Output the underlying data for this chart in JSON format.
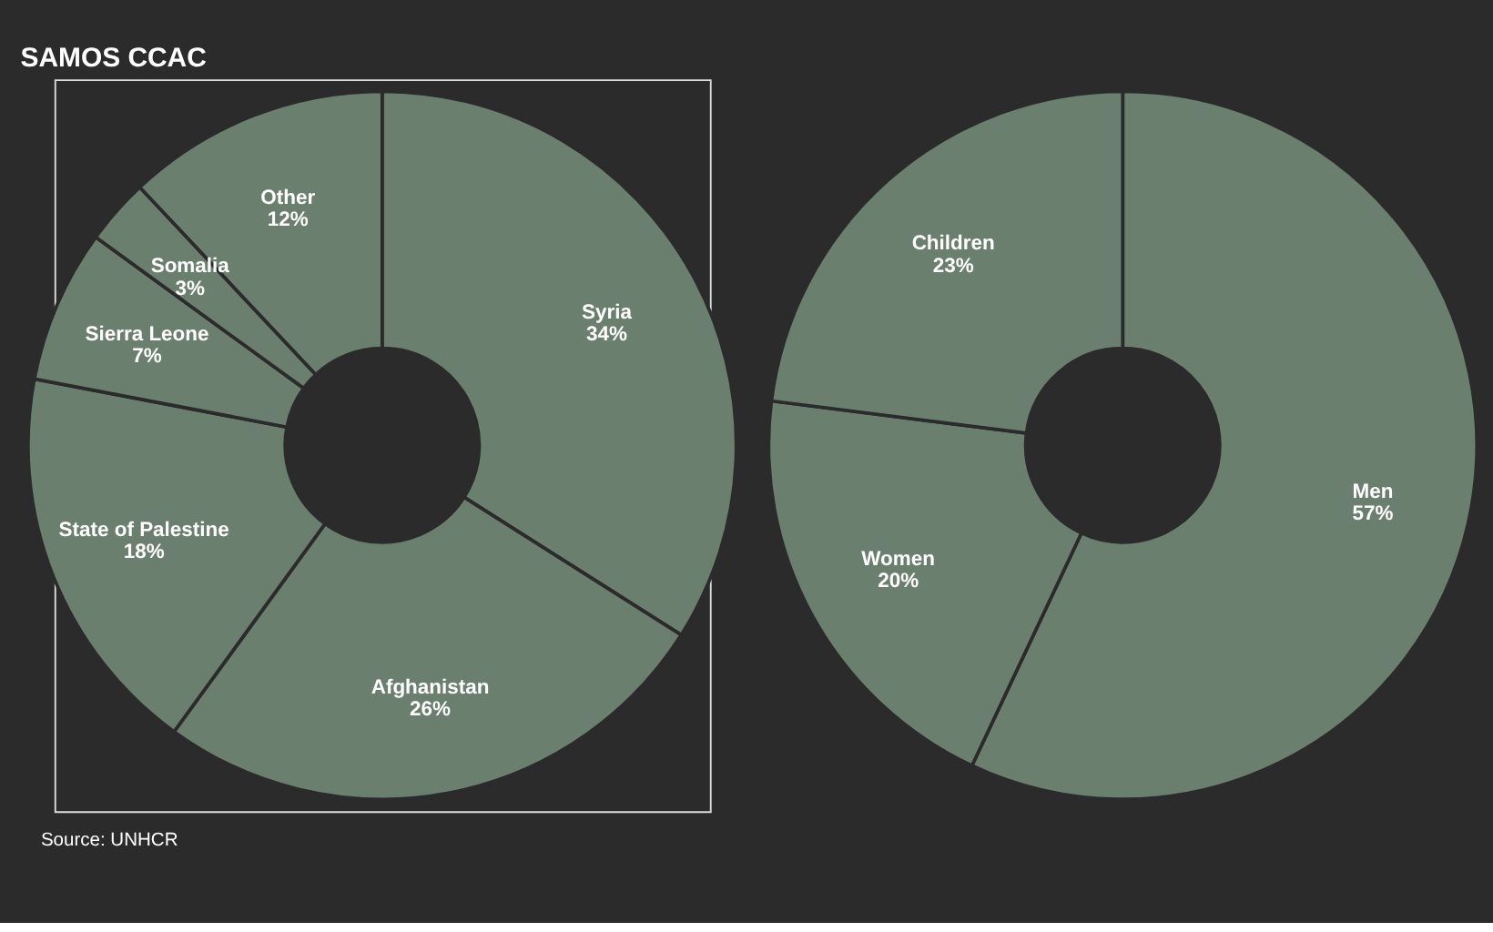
{
  "chart_data": [
    {
      "type": "donut",
      "title": "SAMOS CCAC",
      "categories": [
        "Syria",
        "Afghanistan",
        "State of Palestine",
        "Sierra Leone",
        "Somalia",
        "Other"
      ],
      "values": [
        34,
        26,
        18,
        7,
        3,
        12
      ],
      "value_labels": [
        "34%",
        "26%",
        "18%",
        "7%",
        "3%",
        "12%"
      ],
      "colors": [
        "#6b7f6e",
        "#6b7f6e",
        "#6b7f6e",
        "#6b7f6e",
        "#6b7f6e",
        "#6b7f6e"
      ],
      "annotations": [
        "Source: UNHCR"
      ]
    },
    {
      "type": "donut",
      "categories": [
        "Men",
        "Women",
        "Children"
      ],
      "values": [
        57,
        20,
        23
      ],
      "value_labels": [
        "57%",
        "20%",
        "23%"
      ],
      "colors": [
        "#6b7f6e",
        "#6b7f6e",
        "#6b7f6e"
      ]
    }
  ]
}
